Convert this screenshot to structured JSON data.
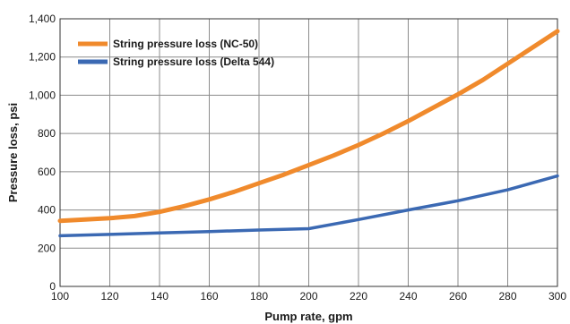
{
  "chart_data": {
    "type": "line",
    "xlabel": "Pump rate, gpm",
    "ylabel": "Pressure loss, psi",
    "xlim": [
      100,
      300
    ],
    "ylim": [
      0,
      1400
    ],
    "x_ticks": [
      100,
      120,
      140,
      160,
      180,
      200,
      220,
      240,
      260,
      280,
      300
    ],
    "y_ticks": [
      0,
      200,
      400,
      600,
      800,
      1000,
      1200,
      1400
    ],
    "y_tick_labels": [
      "0",
      "200",
      "400",
      "600",
      "800",
      "1,000",
      "1,200",
      "1,400"
    ],
    "grid": true,
    "legend_position": "top-left",
    "series": [
      {
        "name": "String pressure loss (NC-50)",
        "color": "#f08a2c",
        "x": [
          100,
          110,
          120,
          130,
          140,
          150,
          160,
          170,
          180,
          190,
          200,
          210,
          220,
          230,
          240,
          250,
          260,
          270,
          280,
          290,
          300
        ],
        "y": [
          343,
          350,
          357,
          368,
          390,
          420,
          455,
          495,
          540,
          585,
          635,
          685,
          740,
          800,
          865,
          935,
          1005,
          1080,
          1165,
          1250,
          1335
        ]
      },
      {
        "name": "String pressure loss (Delta 544)",
        "color": "#3b69b3",
        "x": [
          100,
          120,
          140,
          160,
          180,
          200,
          220,
          240,
          260,
          280,
          300
        ],
        "y": [
          265,
          272,
          280,
          287,
          295,
          302,
          350,
          400,
          448,
          505,
          578
        ]
      }
    ]
  }
}
